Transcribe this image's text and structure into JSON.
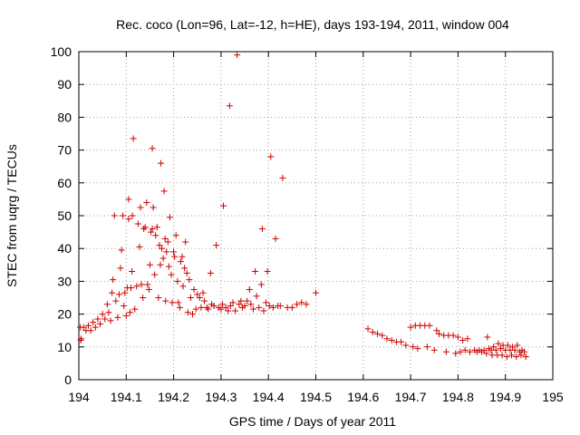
{
  "chart_data": {
    "type": "scatter",
    "title": "Rec. coco (Lon=96, Lat=-12, h=HE), days 193-194, 2011, window 004",
    "xlabel": "GPS time / Days of year 2011",
    "ylabel": "STEC from uqrg / TECUs",
    "xlim": [
      194,
      195
    ],
    "ylim": [
      0,
      100
    ],
    "xticks": [
      194,
      194.1,
      194.2,
      194.3,
      194.4,
      194.5,
      194.6,
      194.7,
      194.8,
      194.9,
      195
    ],
    "xtick_labels": [
      "194",
      "194.1",
      "194.2",
      "194.3",
      "194.4",
      "194.5",
      "194.6",
      "194.7",
      "194.8",
      "194.9",
      "195"
    ],
    "yticks": [
      0,
      10,
      20,
      30,
      40,
      50,
      60,
      70,
      80,
      90,
      100
    ],
    "ytick_labels": [
      "0",
      "10",
      "20",
      "30",
      "40",
      "50",
      "60",
      "70",
      "80",
      "90",
      "100"
    ],
    "grid": true,
    "marker": "+",
    "color": "#cc0000",
    "series": [
      {
        "name": "STEC",
        "points": [
          [
            194.003,
            16
          ],
          [
            194.004,
            12
          ],
          [
            194.005,
            12.5
          ],
          [
            194.01,
            16
          ],
          [
            194.015,
            15
          ],
          [
            194.02,
            16.5
          ],
          [
            194.025,
            15
          ],
          [
            194.03,
            17.5
          ],
          [
            194.035,
            16
          ],
          [
            194.04,
            18.5
          ],
          [
            194.045,
            17
          ],
          [
            194.05,
            20
          ],
          [
            194.055,
            18.5
          ],
          [
            194.06,
            23
          ],
          [
            194.063,
            20.5
          ],
          [
            194.067,
            18
          ],
          [
            194.07,
            26.5
          ],
          [
            194.072,
            30.5
          ],
          [
            194.075,
            50
          ],
          [
            194.078,
            24
          ],
          [
            194.082,
            19
          ],
          [
            194.085,
            26
          ],
          [
            194.088,
            34
          ],
          [
            194.09,
            39.5
          ],
          [
            194.093,
            50
          ],
          [
            194.095,
            22.5
          ],
          [
            194.097,
            26.5
          ],
          [
            194.1,
            19.5
          ],
          [
            194.102,
            28
          ],
          [
            194.105,
            49
          ],
          [
            194.105,
            55
          ],
          [
            194.108,
            20.5
          ],
          [
            194.11,
            28
          ],
          [
            194.112,
            33
          ],
          [
            194.113,
            50
          ],
          [
            194.115,
            73.5
          ],
          [
            194.118,
            21.5
          ],
          [
            194.122,
            28.5
          ],
          [
            194.125,
            47.5
          ],
          [
            194.128,
            40.5
          ],
          [
            194.13,
            52.5
          ],
          [
            194.132,
            29
          ],
          [
            194.135,
            25
          ],
          [
            194.137,
            46
          ],
          [
            194.14,
            46.5
          ],
          [
            194.143,
            54
          ],
          [
            194.145,
            29
          ],
          [
            194.148,
            27.5
          ],
          [
            194.15,
            35
          ],
          [
            194.152,
            45
          ],
          [
            194.155,
            46
          ],
          [
            194.155,
            70.5
          ],
          [
            194.157,
            52.5
          ],
          [
            194.16,
            32
          ],
          [
            194.162,
            44
          ],
          [
            194.165,
            46.5
          ],
          [
            194.168,
            25
          ],
          [
            194.17,
            41
          ],
          [
            194.172,
            35
          ],
          [
            194.173,
            66
          ],
          [
            194.175,
            40
          ],
          [
            194.178,
            37
          ],
          [
            194.18,
            57.5
          ],
          [
            194.182,
            43
          ],
          [
            194.183,
            24
          ],
          [
            194.185,
            39
          ],
          [
            194.188,
            42
          ],
          [
            194.19,
            34.5
          ],
          [
            194.192,
            49.5
          ],
          [
            194.195,
            32
          ],
          [
            194.197,
            23.5
          ],
          [
            194.2,
            39
          ],
          [
            194.202,
            37.5
          ],
          [
            194.205,
            44
          ],
          [
            194.208,
            30
          ],
          [
            194.21,
            23.5
          ],
          [
            194.213,
            22
          ],
          [
            194.215,
            36
          ],
          [
            194.218,
            37.5
          ],
          [
            194.22,
            28.5
          ],
          [
            194.223,
            34
          ],
          [
            194.225,
            42
          ],
          [
            194.228,
            32.5
          ],
          [
            194.23,
            20.5
          ],
          [
            194.233,
            30.5
          ],
          [
            194.236,
            25
          ],
          [
            194.24,
            20
          ],
          [
            194.243,
            27.5
          ],
          [
            194.247,
            21.5
          ],
          [
            194.25,
            26
          ],
          [
            194.255,
            25
          ],
          [
            194.258,
            22
          ],
          [
            194.262,
            26.5
          ],
          [
            194.265,
            24
          ],
          [
            194.27,
            22
          ],
          [
            194.273,
            21.5
          ],
          [
            194.278,
            32.5
          ],
          [
            194.28,
            23
          ],
          [
            194.285,
            22.5
          ],
          [
            194.29,
            41
          ],
          [
            194.295,
            22
          ],
          [
            194.3,
            21.5
          ],
          [
            194.303,
            23
          ],
          [
            194.305,
            53
          ],
          [
            194.31,
            22
          ],
          [
            194.315,
            21
          ],
          [
            194.318,
            83.5
          ],
          [
            194.32,
            22.5
          ],
          [
            194.325,
            23.5
          ],
          [
            194.33,
            21
          ],
          [
            194.334,
            99
          ],
          [
            194.338,
            23
          ],
          [
            194.342,
            24
          ],
          [
            194.345,
            22
          ],
          [
            194.35,
            22.5
          ],
          [
            194.355,
            24
          ],
          [
            194.36,
            27.5
          ],
          [
            194.363,
            23
          ],
          [
            194.368,
            21.5
          ],
          [
            194.372,
            33
          ],
          [
            194.375,
            25.5
          ],
          [
            194.38,
            22
          ],
          [
            194.385,
            29
          ],
          [
            194.387,
            46
          ],
          [
            194.39,
            21
          ],
          [
            194.395,
            23.5
          ],
          [
            194.398,
            33
          ],
          [
            194.402,
            22.5
          ],
          [
            194.405,
            68
          ],
          [
            194.41,
            22
          ],
          [
            194.415,
            43
          ],
          [
            194.42,
            22.5
          ],
          [
            194.425,
            22.5
          ],
          [
            194.43,
            61.5
          ],
          [
            194.44,
            22
          ],
          [
            194.45,
            22
          ],
          [
            194.46,
            23
          ],
          [
            194.47,
            23.5
          ],
          [
            194.48,
            23
          ],
          [
            194.5,
            26.5
          ],
          [
            194.61,
            15.5
          ],
          [
            194.62,
            14.5
          ],
          [
            194.63,
            14
          ],
          [
            194.64,
            13.5
          ],
          [
            194.65,
            12.5
          ],
          [
            194.66,
            12
          ],
          [
            194.67,
            11.5
          ],
          [
            194.68,
            11.5
          ],
          [
            194.69,
            10.5
          ],
          [
            194.7,
            16
          ],
          [
            194.705,
            10
          ],
          [
            194.71,
            16.5
          ],
          [
            194.715,
            9.5
          ],
          [
            194.72,
            16.5
          ],
          [
            194.73,
            16.5
          ],
          [
            194.735,
            10
          ],
          [
            194.74,
            16.5
          ],
          [
            194.75,
            9
          ],
          [
            194.755,
            15
          ],
          [
            194.76,
            14
          ],
          [
            194.77,
            13.5
          ],
          [
            194.775,
            8.5
          ],
          [
            194.78,
            13.5
          ],
          [
            194.79,
            13.5
          ],
          [
            194.795,
            8
          ],
          [
            194.8,
            13
          ],
          [
            194.805,
            8.5
          ],
          [
            194.81,
            12
          ],
          [
            194.815,
            9
          ],
          [
            194.82,
            12.5
          ],
          [
            194.825,
            8.5
          ],
          [
            194.835,
            9
          ],
          [
            194.84,
            8.5
          ],
          [
            194.845,
            9
          ],
          [
            194.85,
            8.5
          ],
          [
            194.855,
            9
          ],
          [
            194.86,
            8
          ],
          [
            194.862,
            13
          ],
          [
            194.865,
            9.5
          ],
          [
            194.87,
            9
          ],
          [
            194.872,
            7.5
          ],
          [
            194.875,
            10
          ],
          [
            194.88,
            9
          ],
          [
            194.883,
            7.5
          ],
          [
            194.885,
            11
          ],
          [
            194.89,
            9.5
          ],
          [
            194.893,
            7.5
          ],
          [
            194.895,
            10.5
          ],
          [
            194.9,
            9
          ],
          [
            194.903,
            7
          ],
          [
            194.905,
            10.5
          ],
          [
            194.91,
            9
          ],
          [
            194.913,
            7.5
          ],
          [
            194.915,
            10
          ],
          [
            194.92,
            9
          ],
          [
            194.923,
            7
          ],
          [
            194.925,
            10.5
          ],
          [
            194.93,
            8.5
          ],
          [
            194.933,
            7.5
          ],
          [
            194.935,
            9
          ],
          [
            194.94,
            8.5
          ],
          [
            194.943,
            7
          ]
        ]
      }
    ]
  }
}
